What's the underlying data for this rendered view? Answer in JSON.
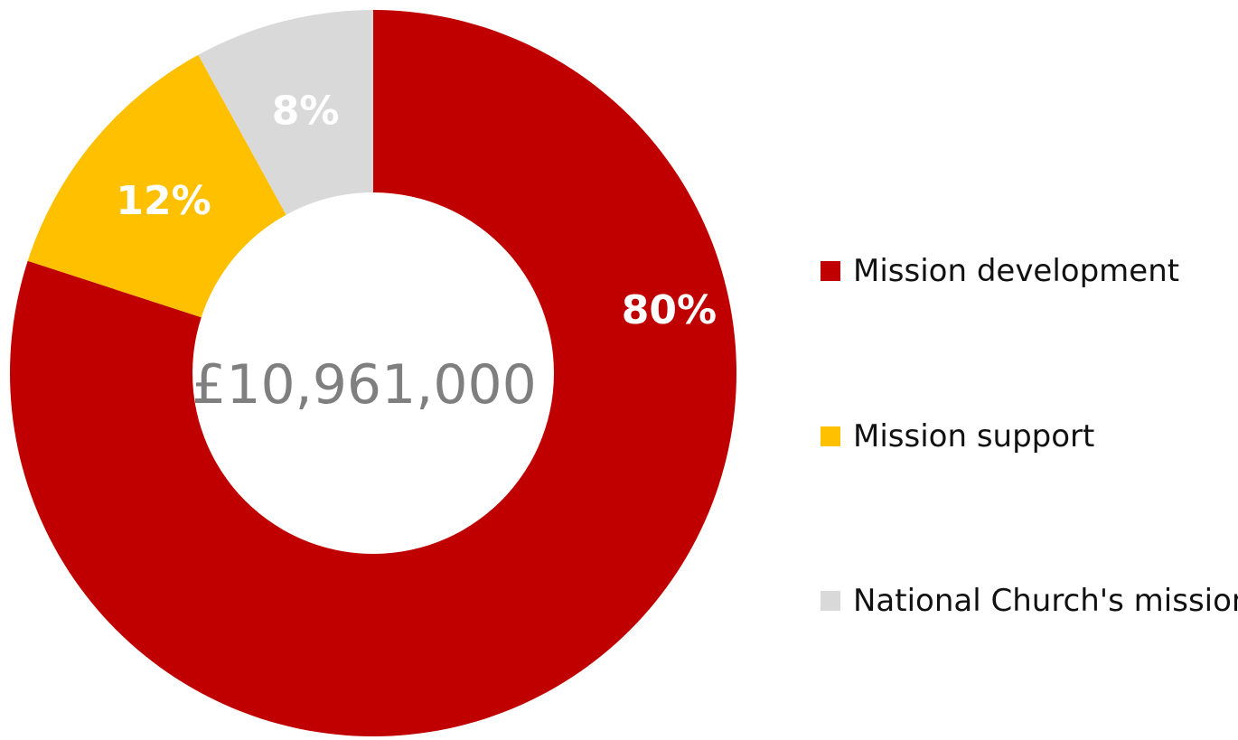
{
  "chart_data": {
    "type": "pie",
    "variant": "donut",
    "center_label": "£10,961,000",
    "slices": [
      {
        "name": "Mission development",
        "value": 80,
        "label": "80%",
        "color": "#c00000"
      },
      {
        "name": "Mission support",
        "value": 12,
        "label": "12%",
        "color": "#ffc000"
      },
      {
        "name": "National Church's mission",
        "value": 8,
        "label": "8%",
        "color": "#d9d9d9"
      }
    ],
    "start_angle": "12 o'clock",
    "direction": "clockwise",
    "legend": {
      "position": "right",
      "items": [
        "Mission development",
        "Mission support",
        "National Church's mission"
      ]
    }
  }
}
